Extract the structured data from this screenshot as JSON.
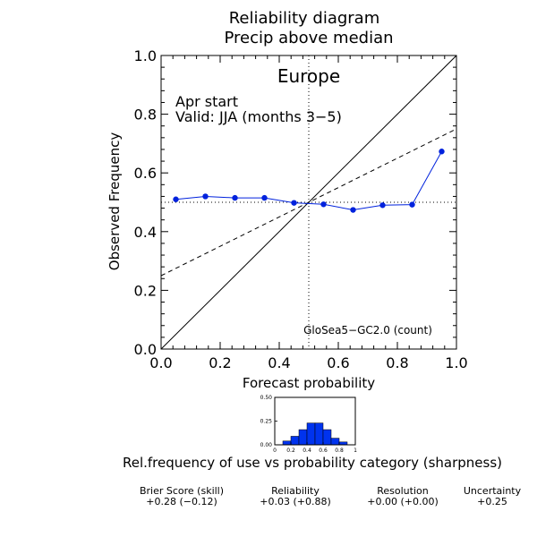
{
  "chart_data": [
    {
      "type": "line",
      "title": "Reliability diagram",
      "subtitle": "Precip above median",
      "region": "Europe",
      "annotation_lines": [
        "Apr start",
        "Valid: JJA (months 3−5)"
      ],
      "model_label": "GloSea5−GC2.0 (count)",
      "xlabel": "Forecast probability",
      "ylabel": "Observed Frequency",
      "xlim": [
        0,
        1
      ],
      "ylim": [
        0,
        1
      ],
      "x_ticks": [
        "0.0",
        "0.2",
        "0.4",
        "0.6",
        "0.8",
        "1.0"
      ],
      "y_ticks": [
        "0.0",
        "0.2",
        "0.4",
        "0.6",
        "0.8",
        "1.0"
      ],
      "series": [
        {
          "x": [
            0.05,
            0.15,
            0.25,
            0.35,
            0.45,
            0.55,
            0.65,
            0.75,
            0.85,
            0.95
          ],
          "y": [
            0.51,
            0.52,
            0.515,
            0.515,
            0.498,
            0.493,
            0.474,
            0.49,
            0.492,
            0.673
          ],
          "color": "#0022dd"
        }
      ],
      "reference_lines": {
        "perfect_reliability": {
          "from": [
            0,
            0
          ],
          "to": [
            1,
            1
          ],
          "style": "solid"
        },
        "no_skill": {
          "from": [
            0,
            0.25
          ],
          "to": [
            1,
            0.75
          ],
          "style": "dashed"
        },
        "climatology_x": 0.5,
        "climatology_y": 0.5
      },
      "grid": false
    },
    {
      "type": "bar",
      "caption": "Rel.frequency of use vs probability category (sharpness)",
      "x_ticks": [
        "0",
        "0.2",
        "0.4",
        "0.6",
        "0.8",
        "1"
      ],
      "y_ticks": [
        "0.00",
        "0.25",
        "0.50"
      ],
      "xlim": [
        0,
        1
      ],
      "ylim": [
        0,
        0.5
      ],
      "categories": [
        "0.0-0.1",
        "0.1-0.2",
        "0.2-0.3",
        "0.3-0.4",
        "0.4-0.5",
        "0.5-0.6",
        "0.6-0.7",
        "0.7-0.8",
        "0.8-0.9",
        "0.9-1.0"
      ],
      "values": [
        0.0,
        0.04,
        0.09,
        0.16,
        0.23,
        0.23,
        0.16,
        0.07,
        0.03,
        0.0
      ],
      "bar_color": "#0033ee"
    }
  ],
  "scores": [
    {
      "name": "Brier Score (skill)",
      "value": "+0.28  (−0.12)"
    },
    {
      "name": "Reliability",
      "value": "+0.03  (+0.88)"
    },
    {
      "name": "Resolution",
      "value": "+0.00  (+0.00)"
    },
    {
      "name": "Uncertainty",
      "value": "+0.25"
    }
  ]
}
